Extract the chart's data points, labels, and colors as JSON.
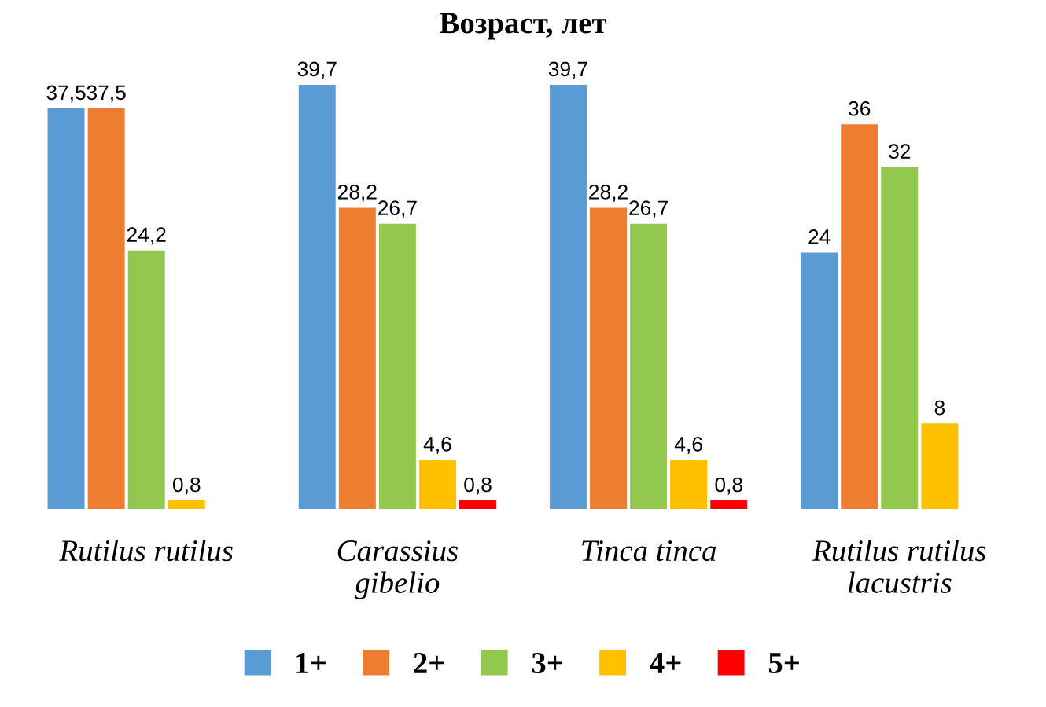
{
  "chart_data": {
    "type": "bar",
    "title": "Возраст, лет",
    "categories": [
      "Rutilus rutilus",
      "Carassius\ngibelio",
      "Tinca tinca",
      "Rutilus rutilus\nlacustris"
    ],
    "series": [
      {
        "name": "1+",
        "color": "#5b9bd5",
        "values": [
          37.5,
          39.7,
          39.7,
          24
        ],
        "value_labels": [
          "37,5",
          "39,7",
          "39,7",
          "24"
        ]
      },
      {
        "name": "2+",
        "color": "#ed7d31",
        "values": [
          37.5,
          28.2,
          28.2,
          36
        ],
        "value_labels": [
          "37,5",
          "28,2",
          "28,2",
          "36"
        ]
      },
      {
        "name": "3+",
        "color": "#92c84e",
        "values": [
          24.2,
          26.7,
          26.7,
          32
        ],
        "value_labels": [
          "24,2",
          "26,7",
          "26,7",
          "32"
        ]
      },
      {
        "name": "4+",
        "color": "#ffc000",
        "values": [
          0.8,
          4.6,
          4.6,
          8
        ],
        "value_labels": [
          "0,8",
          "4,6",
          "4,6",
          "8"
        ]
      },
      {
        "name": "5+",
        "color": "#ff0000",
        "values": [
          null,
          0.8,
          0.8,
          null
        ],
        "value_labels": [
          null,
          "0,8",
          "0,8",
          null
        ]
      }
    ],
    "legend": "bottom",
    "grid": false
  }
}
